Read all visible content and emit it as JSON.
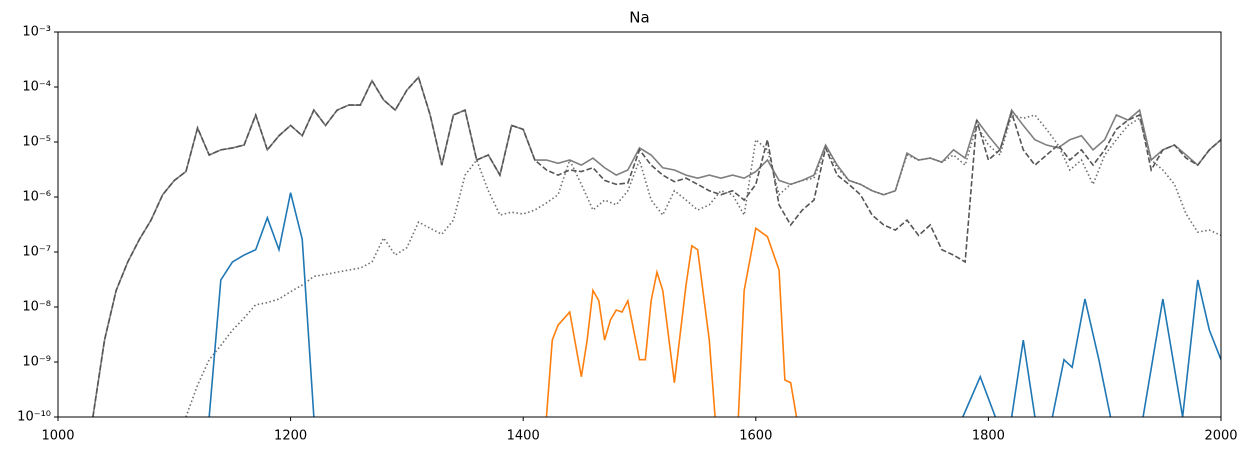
{
  "chart_data": {
    "type": "line",
    "title": "Na",
    "yscale": "log",
    "grid": false,
    "xlim": [
      1000,
      2000
    ],
    "xticks": [
      1000,
      1200,
      1400,
      1600,
      1800,
      2000
    ],
    "ylim": [
      1e-10,
      0.001
    ],
    "yticks": [
      {
        "value": 1e-10,
        "label": "10⁻¹⁰"
      },
      {
        "value": 1e-09,
        "label": "10⁻⁹"
      },
      {
        "value": 1e-08,
        "label": "10⁻⁸"
      },
      {
        "value": 1e-07,
        "label": "10⁻⁷"
      },
      {
        "value": 1e-06,
        "label": "10⁻⁶"
      },
      {
        "value": 1e-05,
        "label": "10⁻⁵"
      },
      {
        "value": 0.0001,
        "label": "10⁻⁴"
      },
      {
        "value": 0.001,
        "label": "10⁻³"
      }
    ],
    "series": [
      {
        "color": "#7f7f7f",
        "linestyle": "solid",
        "x": [
          1030,
          1040,
          1050,
          1060,
          1070,
          1080,
          1090,
          1100,
          1110,
          1120,
          1130,
          1140,
          1150,
          1160,
          1170,
          1180,
          1190,
          1200,
          1210,
          1220,
          1230,
          1240,
          1250,
          1260,
          1270,
          1280,
          1290,
          1300,
          1310,
          1320,
          1330,
          1340,
          1350,
          1360,
          1370,
          1380,
          1390,
          1400,
          1410,
          1420,
          1430,
          1440,
          1450,
          1460,
          1470,
          1480,
          1490,
          1500,
          1510,
          1520,
          1530,
          1540,
          1550,
          1560,
          1570,
          1580,
          1590,
          1600,
          1610,
          1620,
          1630,
          1640,
          1650,
          1660,
          1670,
          1680,
          1690,
          1700,
          1710,
          1720,
          1730,
          1740,
          1750,
          1760,
          1770,
          1780,
          1790,
          1800,
          1810,
          1820,
          1830,
          1840,
          1850,
          1860,
          1870,
          1880,
          1890,
          1900,
          1910,
          1920,
          1930,
          1940,
          1950,
          1960,
          1970,
          1980,
          1990,
          2000
        ],
        "values": [
          1e-10,
          2.5e-09,
          2e-08,
          6.6e-08,
          1.7e-07,
          3.8e-07,
          1.1e-06,
          2e-06,
          2.9e-06,
          1.8e-05,
          5.8e-06,
          7.2e-06,
          7.8e-06,
          8.8e-06,
          3.1e-05,
          7.2e-06,
          1.3e-05,
          2e-05,
          1.3e-05,
          3.8e-05,
          2e-05,
          3.8e-05,
          4.7e-05,
          4.7e-05,
          0.00013,
          5.8e-05,
          3.8e-05,
          8.8e-05,
          0.00015,
          3.1e-05,
          3.8e-06,
          3.1e-05,
          3.8e-05,
          4.7e-06,
          5.8e-06,
          2.5e-06,
          2e-05,
          1.7e-05,
          4.7e-06,
          4.7e-06,
          4.1e-06,
          4.7e-06,
          3.8e-06,
          5.1e-06,
          3.4e-06,
          2.5e-06,
          3.1e-06,
          7.8e-06,
          5.8e-06,
          3.4e-06,
          3.1e-06,
          2.5e-06,
          2.2e-06,
          2.5e-06,
          2.2e-06,
          2.5e-06,
          2.2e-06,
          2.9e-06,
          4.7e-06,
          2e-06,
          1.7e-06,
          2e-06,
          2.5e-06,
          8.8e-06,
          3.8e-06,
          2e-06,
          1.7e-06,
          1.3e-06,
          1.1e-06,
          1.3e-06,
          6.3e-06,
          4.7e-06,
          5.1e-06,
          4.3e-06,
          7.2e-06,
          5.1e-06,
          2.5e-05,
          1.3e-05,
          7.2e-06,
          3.8e-05,
          2e-05,
          1.1e-05,
          8.8e-06,
          7.8e-06,
          1.1e-05,
          1.3e-05,
          7.2e-06,
          1.1e-05,
          3.1e-05,
          2.5e-05,
          3.8e-05,
          4.7e-06,
          7.2e-06,
          8.8e-06,
          5.8e-06,
          3.8e-06,
          7.2e-06,
          1.1e-05
        ]
      },
      {
        "color": "#555555",
        "linestyle": "dashed",
        "x": [
          1030,
          1040,
          1050,
          1060,
          1070,
          1080,
          1090,
          1100,
          1110,
          1120,
          1130,
          1140,
          1150,
          1160,
          1170,
          1180,
          1190,
          1200,
          1210,
          1220,
          1230,
          1240,
          1250,
          1260,
          1270,
          1280,
          1290,
          1300,
          1310,
          1320,
          1330,
          1340,
          1350,
          1360,
          1370,
          1380,
          1390,
          1400,
          1410,
          1420,
          1430,
          1440,
          1450,
          1460,
          1470,
          1480,
          1490,
          1500,
          1510,
          1520,
          1530,
          1540,
          1550,
          1560,
          1570,
          1580,
          1590,
          1600,
          1610,
          1620,
          1630,
          1640,
          1650,
          1660,
          1670,
          1680,
          1690,
          1700,
          1710,
          1720,
          1730,
          1740,
          1750,
          1760,
          1770,
          1780,
          1790,
          1800,
          1810,
          1820,
          1830,
          1840,
          1850,
          1860,
          1870,
          1880,
          1890,
          1900,
          1910,
          1920,
          1930,
          1940,
          1950,
          1960,
          1970,
          1980,
          1990,
          2000
        ],
        "values": [
          1e-10,
          2.5e-09,
          2e-08,
          6.6e-08,
          1.7e-07,
          3.8e-07,
          1.1e-06,
          2e-06,
          2.9e-06,
          1.8e-05,
          5.8e-06,
          7.2e-06,
          7.8e-06,
          8.8e-06,
          3.1e-05,
          7.2e-06,
          1.3e-05,
          2e-05,
          1.3e-05,
          3.8e-05,
          2e-05,
          3.8e-05,
          4.7e-05,
          4.7e-05,
          0.00013,
          5.8e-05,
          3.8e-05,
          8.8e-05,
          0.00015,
          3.1e-05,
          3.8e-06,
          3.1e-05,
          3.8e-05,
          4.7e-06,
          5.8e-06,
          2.5e-06,
          2e-05,
          1.7e-05,
          4.7e-06,
          3.1e-06,
          2.5e-06,
          3.1e-06,
          2.9e-06,
          3.4e-06,
          2e-06,
          1.7e-06,
          1.8e-06,
          7.2e-06,
          3.8e-06,
          2.5e-06,
          1.9e-06,
          2.2e-06,
          1.7e-06,
          1.3e-06,
          1.1e-06,
          1.3e-06,
          8.8e-07,
          1.7e-06,
          1.1e-05,
          7.2e-07,
          3.1e-07,
          5.8e-07,
          8.8e-07,
          7.8e-06,
          2.5e-06,
          1.7e-06,
          1.1e-06,
          4.7e-07,
          3.1e-07,
          2.5e-07,
          3.8e-07,
          2e-07,
          3.1e-07,
          1.1e-07,
          8.8e-08,
          6.6e-08,
          2.5e-05,
          4.7e-06,
          7.2e-06,
          3.4e-05,
          7.2e-06,
          3.8e-06,
          5.8e-06,
          8.8e-06,
          4.7e-06,
          7.2e-06,
          3.8e-06,
          7.2e-06,
          1.7e-05,
          2.5e-05,
          3.1e-05,
          3.1e-06,
          7.2e-06,
          8.8e-06,
          5.1e-06,
          3.8e-06,
          7.2e-06,
          1.1e-05
        ]
      },
      {
        "color": "#6e6e6e",
        "linestyle": "dotted",
        "x": [
          1110,
          1120,
          1130,
          1140,
          1150,
          1160,
          1170,
          1180,
          1190,
          1200,
          1210,
          1220,
          1230,
          1240,
          1250,
          1260,
          1270,
          1280,
          1290,
          1300,
          1310,
          1320,
          1330,
          1340,
          1350,
          1360,
          1370,
          1380,
          1390,
          1400,
          1410,
          1420,
          1430,
          1440,
          1450,
          1460,
          1470,
          1480,
          1490,
          1500,
          1510,
          1520,
          1530,
          1540,
          1550,
          1560,
          1570,
          1580,
          1590,
          1600,
          1610,
          1620,
          1630,
          1640,
          1650,
          1660,
          1670,
          1680,
          1690,
          1700,
          1710,
          1720,
          1730,
          1740,
          1750,
          1760,
          1770,
          1780,
          1790,
          1800,
          1810,
          1820,
          1830,
          1840,
          1850,
          1860,
          1870,
          1880,
          1890,
          1900,
          1910,
          1920,
          1930,
          1940,
          1950,
          1960,
          1970,
          1980,
          1990,
          2000
        ],
        "values": [
          1e-10,
          3.8e-10,
          1.1e-09,
          2e-09,
          3.8e-09,
          6.3e-09,
          1.1e-08,
          1.2e-08,
          1.4e-08,
          1.9e-08,
          2.5e-08,
          3.6e-08,
          3.9e-08,
          4.3e-08,
          4.7e-08,
          5.1e-08,
          6.6e-08,
          1.8e-07,
          8.8e-08,
          1.2e-07,
          3.5e-07,
          2.7e-07,
          2.1e-07,
          3.8e-07,
          2.5e-06,
          4.7e-06,
          1.3e-06,
          4.7e-07,
          5.3e-07,
          4.9e-07,
          5.8e-07,
          7.8e-07,
          1.1e-06,
          4.7e-06,
          1.7e-06,
          5.8e-07,
          8.8e-07,
          7.2e-07,
          1.3e-06,
          4.7e-06,
          8.8e-07,
          4.7e-07,
          1.3e-06,
          8.8e-07,
          5.8e-07,
          7.2e-07,
          1.3e-06,
          1.1e-06,
          4.7e-07,
          1.1e-05,
          7.2e-06,
          1.1e-06,
          1.7e-06,
          2e-06,
          2.2e-06,
          7.8e-06,
          3.4e-06,
          2e-06,
          1.7e-06,
          1.3e-06,
          1.1e-06,
          1.3e-06,
          5.8e-06,
          4.7e-06,
          5.1e-06,
          4.3e-06,
          5.8e-06,
          3.8e-06,
          2e-05,
          8.8e-06,
          5.8e-06,
          3.1e-05,
          2.7e-05,
          3.1e-05,
          1.7e-05,
          8.8e-06,
          3.1e-06,
          4.7e-06,
          1.7e-06,
          5.8e-06,
          1.1e-05,
          2e-05,
          2.7e-05,
          4.7e-06,
          3.1e-06,
          1.7e-06,
          4.9e-07,
          2.3e-07,
          2.5e-07,
          2e-07
        ]
      },
      {
        "color": "#1f77b4",
        "linestyle": "solid",
        "x": [
          1130,
          1140,
          1150,
          1160,
          1170,
          1180,
          1190,
          1200,
          1210,
          1220,
          1500,
          1778,
          1793,
          1806,
          1812,
          1820,
          1830,
          1840,
          1848,
          1855,
          1865,
          1872,
          1883,
          1895,
          1905,
          1920,
          1933,
          1950,
          1967,
          1980,
          1990,
          2000
        ],
        "values": [
          1e-10,
          3.1e-08,
          6.6e-08,
          8.8e-08,
          1.1e-07,
          4.2e-07,
          1.1e-07,
          1.2e-06,
          1.7e-07,
          1e-10,
          null,
          1e-10,
          5.4e-10,
          1e-10,
          null,
          1e-10,
          2.5e-09,
          1e-10,
          null,
          1e-10,
          1.1e-09,
          8e-10,
          1.4e-08,
          1.1e-09,
          1e-10,
          null,
          1e-10,
          1.4e-08,
          1e-10,
          3.1e-08,
          3.8e-09,
          1.1e-09
        ]
      },
      {
        "color": "#ff7f0e",
        "linestyle": "solid",
        "x": [
          1420,
          1425,
          1430,
          1440,
          1450,
          1455,
          1460,
          1465,
          1470,
          1475,
          1480,
          1485,
          1490,
          1500,
          1505,
          1510,
          1515,
          1520,
          1530,
          1540,
          1545,
          1550,
          1560,
          1565,
          1575,
          1585,
          1590,
          1600,
          1610,
          1620,
          1625,
          1630,
          1635
        ],
        "values": [
          1e-10,
          2.5e-09,
          4.7e-09,
          8.1e-09,
          5.4e-10,
          2.5e-09,
          2e-08,
          1.3e-08,
          2.5e-09,
          5.8e-09,
          8.8e-09,
          8.1e-09,
          1.3e-08,
          1.1e-09,
          1.1e-09,
          1.3e-08,
          4.3e-08,
          2e-08,
          4.2e-10,
          2.5e-08,
          1.3e-07,
          1.1e-07,
          2.5e-09,
          1e-10,
          null,
          1e-10,
          2e-08,
          2.7e-07,
          1.9e-07,
          4.7e-08,
          4.7e-10,
          4.2e-10,
          1e-10
        ]
      }
    ]
  }
}
